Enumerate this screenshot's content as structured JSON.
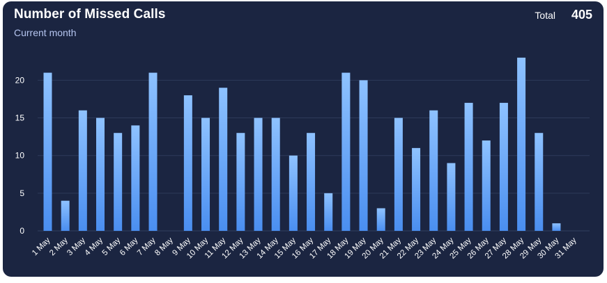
{
  "header": {
    "title": "Number of Missed Calls",
    "subtitle": "Current month",
    "total_label": "Total",
    "total_value": "405"
  },
  "colors": {
    "card_background": "#1b2541",
    "bar_top": "#8ec2ff",
    "bar_bottom": "#4a8ef0",
    "grid": "#2e3b5a"
  },
  "chart_data": {
    "type": "bar",
    "title": "Number of Missed Calls",
    "subtitle": "Current month",
    "xlabel": "",
    "ylabel": "",
    "ylim": [
      0,
      23
    ],
    "yticks": [
      0,
      5,
      10,
      15,
      20
    ],
    "grid": true,
    "legend": "none",
    "categories": [
      "1 May",
      "2 May",
      "3 May",
      "4 May",
      "5 May",
      "6 May",
      "7 May",
      "8 May",
      "9 May",
      "10 May",
      "11 May",
      "12 May",
      "13 May",
      "14 May",
      "15 May",
      "16 May",
      "17 May",
      "18 May",
      "19 May",
      "20 May",
      "21 May",
      "22 May",
      "23 May",
      "24 May",
      "25 May",
      "26 May",
      "27 May",
      "28 May",
      "29 May",
      "30 May",
      "31 May"
    ],
    "values": [
      21,
      4,
      16,
      15,
      13,
      14,
      21,
      0,
      18,
      15,
      19,
      13,
      15,
      15,
      10,
      13,
      5,
      21,
      20,
      3,
      15,
      11,
      16,
      9,
      17,
      12,
      17,
      23,
      13,
      1,
      0
    ]
  }
}
